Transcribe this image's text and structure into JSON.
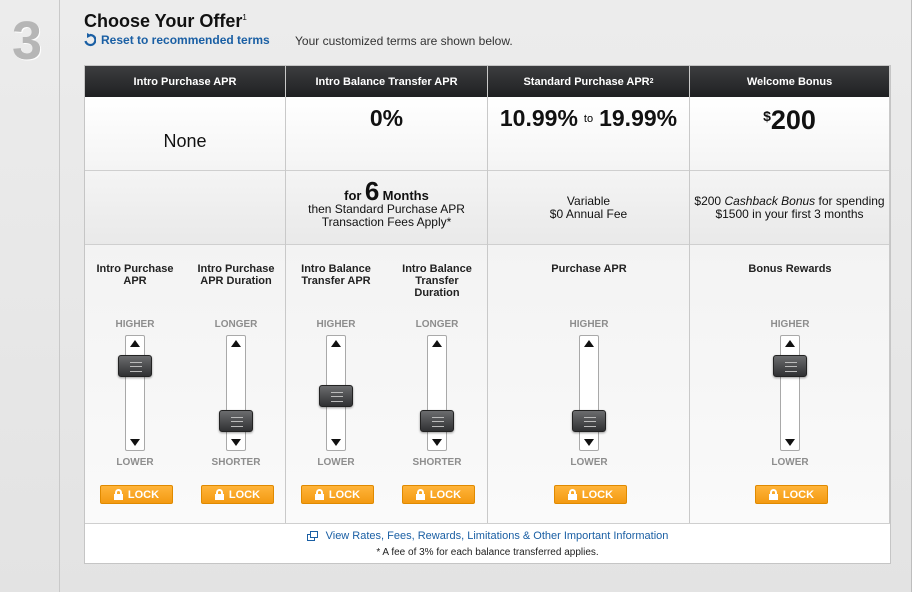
{
  "step": {
    "number": "3"
  },
  "header": {
    "title": "Choose Your Offer",
    "title_sup": "1",
    "reset_label": "Reset to recommended terms",
    "subtitle": "Your customized terms are shown below."
  },
  "columns": [
    {
      "header": "Intro Purchase APR",
      "sup": "",
      "value": "None",
      "detail_lines": []
    },
    {
      "header": "Intro Balance Transfer APR",
      "sup": "",
      "value": "0%",
      "detail_for": "for",
      "detail_months_num": "6",
      "detail_months": "Months",
      "detail_lines": [
        "then Standard Purchase APR",
        "Transaction Fees Apply*"
      ]
    },
    {
      "header": "Standard Purchase APR",
      "sup": "2",
      "value_low": "10.99%",
      "value_to": "to",
      "value_high": "19.99%",
      "detail_lines": [
        "Variable",
        "$0 Annual Fee"
      ]
    },
    {
      "header": "Welcome Bonus",
      "sup": "",
      "value_dollar": "$",
      "value_amount": "200",
      "detail_pre": "$200",
      "detail_em": "Cashback Bonus",
      "detail_post": "for spending",
      "detail_line2": "$1500 in your first 3 months"
    }
  ],
  "sliders": [
    {
      "label": "Intro Purchase APR",
      "top": "HIGHER",
      "bottom": "LOWER",
      "level": 0.88,
      "lock": "LOCK"
    },
    {
      "label": "Intro Purchase APR Duration",
      "top": "LONGER",
      "bottom": "SHORTER",
      "level": 0.0,
      "lock": "LOCK"
    },
    {
      "label": "Intro Balance Transfer APR",
      "top": "HIGHER",
      "bottom": "LOWER",
      "level": 0.4,
      "lock": "LOCK"
    },
    {
      "label": "Intro Balance Transfer Duration",
      "top": "LONGER",
      "bottom": "SHORTER",
      "level": 0.0,
      "lock": "LOCK"
    },
    {
      "label": "Purchase APR",
      "top": "HIGHER",
      "bottom": "LOWER",
      "level": 0.0,
      "lock": "LOCK"
    },
    {
      "label": "Bonus Rewards",
      "top": "HIGHER",
      "bottom": "LOWER",
      "level": 0.88,
      "lock": "LOCK"
    }
  ],
  "footer": {
    "link": "View Rates, Fees, Rewards, Limitations & Other Important Information",
    "note": "* A fee of 3% for each balance transferred applies."
  },
  "colors": {
    "link": "#1a5fa4",
    "lock": "#f7a320",
    "header_bg": "#2a2b2d"
  }
}
